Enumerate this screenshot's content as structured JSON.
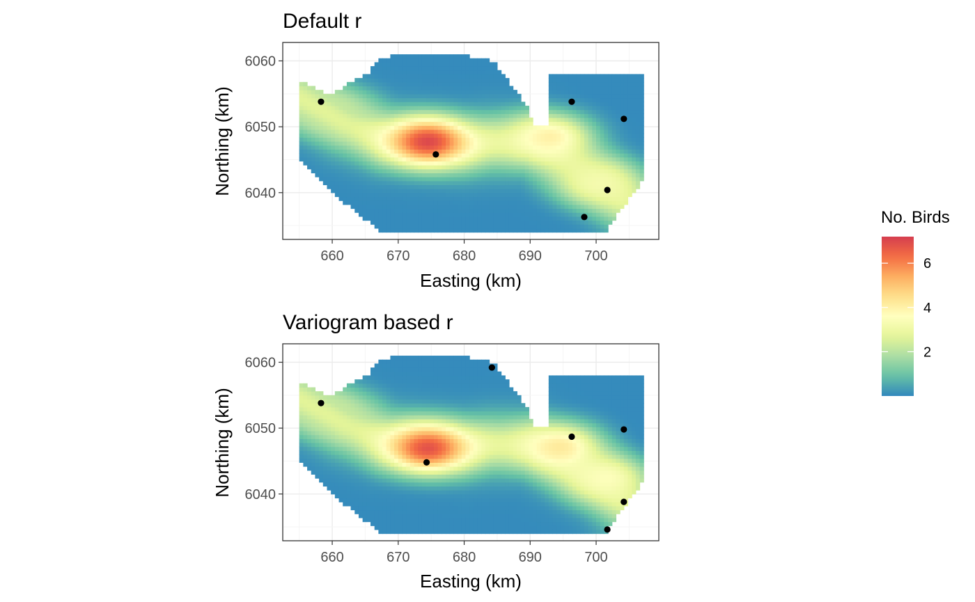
{
  "colors": {
    "panel_border": "#333333",
    "grid_major": "#ebebeb",
    "grid_minor": "#f5f5f5",
    "point": "#000000",
    "palette_spectral": [
      "#3288BD",
      "#66C2A5",
      "#ABDDA4",
      "#E6F598",
      "#FFFFBF",
      "#FEE08B",
      "#FDAE61",
      "#F46D43",
      "#D53E4F"
    ]
  },
  "legend": {
    "title": "No. Birds",
    "ticks": [
      {
        "value": 2,
        "label": "2"
      },
      {
        "value": 4,
        "label": "4"
      },
      {
        "value": 6,
        "label": "6"
      }
    ],
    "range": [
      0,
      7.2
    ]
  },
  "chart_data": [
    {
      "type": "heatmap",
      "title": "Default r",
      "xlabel": "Easting (km)",
      "ylabel": "Northing (km)",
      "xlim": [
        652.5,
        709.5
      ],
      "ylim": [
        6032.9,
        6062.8
      ],
      "xticks": [
        660,
        670,
        680,
        690,
        700
      ],
      "yticks": [
        6040,
        6050,
        6060
      ],
      "grid": true,
      "hotspots": [
        {
          "x": 674.5,
          "y": 6047.8,
          "value": 7.0
        },
        {
          "x": 693.0,
          "y": 6048.5,
          "value": 4.0
        },
        {
          "x": 700.5,
          "y": 6041.5,
          "value": 3.2
        },
        {
          "x": 660.0,
          "y": 6052.5,
          "value": 2.2
        }
      ],
      "points": [
        {
          "x": 658.3,
          "y": 6053.8
        },
        {
          "x": 675.7,
          "y": 6045.8
        },
        {
          "x": 696.3,
          "y": 6053.8
        },
        {
          "x": 704.2,
          "y": 6051.2
        },
        {
          "x": 701.7,
          "y": 6040.4
        },
        {
          "x": 698.2,
          "y": 6036.3
        }
      ]
    },
    {
      "type": "heatmap",
      "title": "Variogram based r",
      "xlabel": "Easting (km)",
      "ylabel": "Northing (km)",
      "xlim": [
        652.5,
        709.5
      ],
      "ylim": [
        6032.9,
        6062.8
      ],
      "xticks": [
        660,
        670,
        680,
        690,
        700
      ],
      "yticks": [
        6040,
        6050,
        6060
      ],
      "grid": true,
      "hotspots": [
        {
          "x": 674.5,
          "y": 6047.0,
          "value": 6.8
        },
        {
          "x": 694.5,
          "y": 6047.2,
          "value": 4.2
        },
        {
          "x": 701.5,
          "y": 6042.5,
          "value": 3.5
        },
        {
          "x": 660.0,
          "y": 6052.5,
          "value": 2.2
        }
      ],
      "points": [
        {
          "x": 658.3,
          "y": 6053.8
        },
        {
          "x": 674.3,
          "y": 6044.8
        },
        {
          "x": 684.2,
          "y": 6059.2
        },
        {
          "x": 696.3,
          "y": 6048.7
        },
        {
          "x": 704.2,
          "y": 6049.8
        },
        {
          "x": 704.2,
          "y": 6038.8
        },
        {
          "x": 701.7,
          "y": 6034.6
        }
      ]
    }
  ]
}
